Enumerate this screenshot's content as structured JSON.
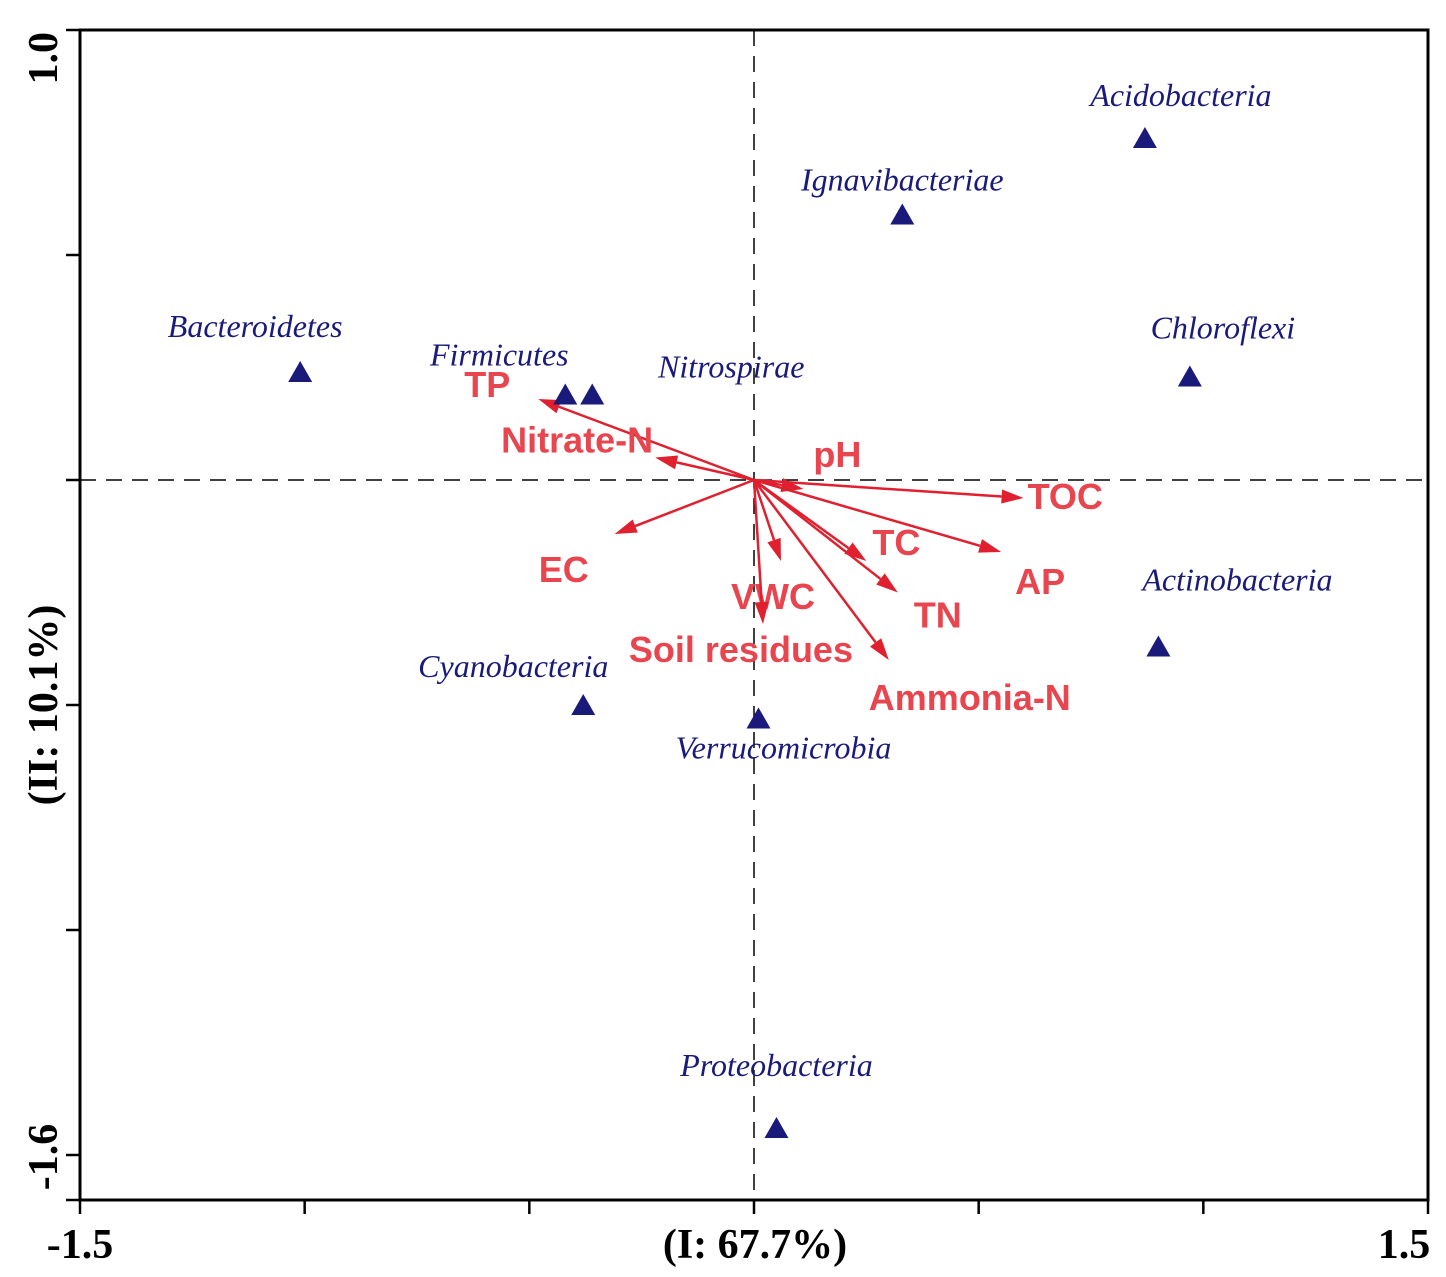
{
  "chart_data": {
    "type": "scatter",
    "subtype": "rda-biplot",
    "xlabel": "(I: 67.7%)",
    "ylabel": "(II: 10.1%)",
    "xlim": [
      -1.5,
      1.5
    ],
    "ylim": [
      -1.6,
      1.0
    ],
    "x_tick_labels": [
      "-1.5",
      "1.5"
    ],
    "y_tick_labels": [
      "1.0",
      "-1.6"
    ],
    "zero_lines": "dashed",
    "colors": {
      "species": "#1a1a7a",
      "arrows": "#e0202e",
      "env_text": "#e8454f",
      "axis": "#000000"
    },
    "species": [
      {
        "name": "Acidobacteria",
        "x": 0.87,
        "y": 0.76
      },
      {
        "name": "Ignavibacteriae",
        "x": 0.33,
        "y": 0.59
      },
      {
        "name": "Chloroflexi",
        "x": 0.97,
        "y": 0.23
      },
      {
        "name": "Bacteroidetes",
        "x": -1.01,
        "y": 0.24
      },
      {
        "name": "Firmicutes",
        "x": -0.42,
        "y": 0.19
      },
      {
        "name": "Nitrospirae",
        "x": -0.36,
        "y": 0.19
      },
      {
        "name": "Actinobacteria",
        "x": 0.9,
        "y": -0.37
      },
      {
        "name": "Cyanobacteria",
        "x": -0.38,
        "y": -0.5
      },
      {
        "name": "Verrucomicrobia",
        "x": 0.01,
        "y": -0.53
      },
      {
        "name": "Proteobacteria",
        "x": 0.05,
        "y": -1.44
      }
    ],
    "environment": [
      {
        "name": "TP",
        "x": -0.48,
        "y": 0.18
      },
      {
        "name": "Nitrate-N",
        "x": -0.22,
        "y": 0.05
      },
      {
        "name": "pH",
        "x": 0.11,
        "y": -0.02
      },
      {
        "name": "TOC",
        "x": 0.6,
        "y": -0.04
      },
      {
        "name": "EC",
        "x": -0.31,
        "y": -0.12
      },
      {
        "name": "VWC",
        "x": 0.06,
        "y": -0.18
      },
      {
        "name": "TC",
        "x": 0.25,
        "y": -0.18
      },
      {
        "name": "AP",
        "x": 0.55,
        "y": -0.16
      },
      {
        "name": "TN",
        "x": 0.32,
        "y": -0.25
      },
      {
        "name": "Soil residues",
        "x": 0.02,
        "y": -0.32
      },
      {
        "name": "Ammonia-N",
        "x": 0.3,
        "y": -0.4
      }
    ]
  }
}
